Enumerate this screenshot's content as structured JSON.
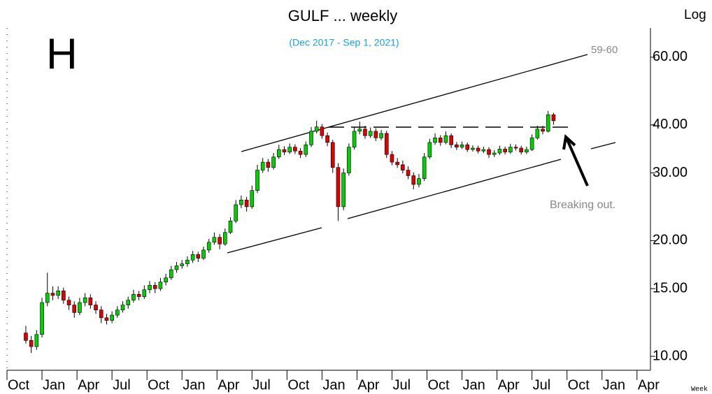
{
  "chart_data": {
    "type": "candlestick",
    "title": "GULF ... weekly",
    "subtitle": "(Dec 2017 - Sep 1, 2021)",
    "annotations": [
      "H",
      "59-60",
      "Breaking out.",
      "Log",
      "Week"
    ],
    "log_scale": true,
    "up_color": "#00d000",
    "down_color": "#e00000",
    "xlim": [
      0,
      239
    ],
    "xticks": [
      {
        "value": 0,
        "label": "Oct"
      },
      {
        "value": 13,
        "label": "Jan"
      },
      {
        "value": 26,
        "label": "Apr"
      },
      {
        "value": 39,
        "label": "Jul"
      },
      {
        "value": 52,
        "label": "Oct"
      },
      {
        "value": 65,
        "label": "Jan"
      },
      {
        "value": 78,
        "label": "Apr"
      },
      {
        "value": 91,
        "label": "Jul"
      },
      {
        "value": 104,
        "label": "Oct"
      },
      {
        "value": 117,
        "label": "Jan"
      },
      {
        "value": 130,
        "label": "Apr"
      },
      {
        "value": 143,
        "label": "Jul"
      },
      {
        "value": 156,
        "label": "Oct"
      },
      {
        "value": 169,
        "label": "Jan"
      },
      {
        "value": 182,
        "label": "Apr"
      },
      {
        "value": 195,
        "label": "Jul"
      },
      {
        "value": 208,
        "label": "Oct"
      },
      {
        "value": 221,
        "label": "Jan"
      },
      {
        "value": 234,
        "label": "Apr"
      }
    ],
    "ylim": [
      9.2,
      70
    ],
    "yticks": [
      {
        "value": 10,
        "label": "10.00"
      },
      {
        "value": 15,
        "label": "15.00"
      },
      {
        "value": 20,
        "label": "20.00"
      },
      {
        "value": 30,
        "label": "30.00"
      },
      {
        "value": 40,
        "label": "40.00"
      },
      {
        "value": 60,
        "label": "60.00"
      }
    ],
    "x": [
      7,
      9,
      11,
      13,
      15,
      17,
      19,
      21,
      23,
      25,
      27,
      29,
      31,
      33,
      35,
      37,
      39,
      41,
      43,
      45,
      47,
      49,
      51,
      53,
      55,
      57,
      59,
      61,
      63,
      65,
      67,
      69,
      71,
      73,
      75,
      77,
      79,
      81,
      83,
      85,
      87,
      89,
      91,
      93,
      95,
      97,
      99,
      101,
      103,
      105,
      107,
      109,
      111,
      113,
      115,
      117,
      119,
      121,
      123,
      125,
      127,
      129,
      131,
      133,
      135,
      137,
      139,
      141,
      143,
      145,
      147,
      149,
      151,
      153,
      155,
      157,
      159,
      161,
      163,
      165,
      167,
      169,
      171,
      173,
      175,
      177,
      179,
      181,
      183,
      185,
      187,
      189,
      191,
      193,
      195,
      197,
      199,
      201,
      203
    ],
    "open": [
      11.5,
      11.0,
      10.6,
      11.4,
      13.8,
      14.6,
      14.4,
      14.8,
      14.0,
      13.6,
      13.0,
      13.8,
      14.2,
      13.6,
      13.2,
      12.6,
      12.4,
      12.8,
      13.2,
      13.6,
      14.0,
      14.5,
      14.3,
      14.9,
      15.3,
      15.0,
      15.6,
      16.0,
      16.8,
      17.2,
      17.4,
      17.8,
      18.4,
      18.0,
      18.9,
      19.8,
      20.4,
      19.6,
      21.0,
      22.5,
      24.8,
      25.5,
      24.5,
      27.0,
      30.5,
      32.0,
      31.0,
      33.0,
      34.5,
      34.0,
      35.0,
      34.2,
      33.5,
      35.5,
      38.5,
      39.5,
      37.5,
      36.0,
      31.0,
      24.5,
      30.0,
      35.0,
      38.5,
      39.0,
      37.5,
      38.5,
      37.0,
      38.0,
      33.5,
      32.0,
      31.5,
      30.5,
      29.5,
      28.0,
      29.0,
      33.0,
      36.0,
      37.0,
      36.0,
      37.5,
      35.5,
      35.0,
      35.5,
      34.5,
      34.8,
      34.2,
      34.5,
      33.5,
      33.8,
      34.6,
      34.0,
      35.0,
      34.8,
      34.0,
      34.5,
      37.0,
      39.0,
      38.5,
      42.5
    ],
    "high": [
      12.0,
      11.3,
      11.7,
      14.2,
      16.5,
      15.2,
      15.2,
      15.1,
      14.3,
      13.9,
      14.2,
      14.6,
      14.5,
      13.9,
      13.5,
      12.9,
      13.1,
      13.5,
      13.9,
      14.3,
      14.9,
      14.8,
      15.3,
      15.7,
      15.6,
      16.0,
      16.4,
      17.2,
      17.6,
      17.8,
      18.2,
      18.8,
      18.7,
      19.3,
      20.2,
      21.0,
      20.8,
      21.5,
      23.0,
      25.5,
      26.2,
      26.0,
      27.8,
      31.5,
      32.8,
      32.6,
      33.8,
      35.5,
      35.2,
      35.8,
      35.6,
      34.8,
      36.2,
      39.5,
      41.0,
      40.2,
      38.2,
      36.6,
      31.8,
      30.8,
      35.8,
      39.5,
      40.8,
      39.8,
      39.4,
      39.2,
      38.8,
      38.6,
      34.2,
      32.8,
      32.3,
      31.2,
      30.1,
      29.8,
      33.8,
      36.8,
      38.0,
      37.6,
      38.5,
      38.0,
      36.1,
      36.2,
      36.0,
      35.4,
      35.3,
      35.1,
      35.0,
      34.4,
      35.3,
      35.1,
      35.7,
      35.6,
      35.3,
      35.1,
      37.8,
      39.8,
      39.8,
      43.5,
      43.0
    ],
    "low": [
      10.8,
      10.2,
      10.4,
      11.2,
      13.5,
      14.0,
      14.1,
      13.7,
      13.2,
      12.6,
      12.8,
      13.5,
      13.3,
      12.9,
      12.2,
      12.1,
      12.2,
      12.6,
      13.0,
      13.3,
      13.8,
      14.0,
      14.1,
      14.6,
      14.6,
      14.8,
      15.3,
      15.8,
      16.5,
      16.9,
      17.1,
      17.5,
      17.6,
      17.8,
      18.6,
      19.5,
      19.0,
      19.4,
      20.8,
      22.2,
      24.3,
      23.8,
      24.2,
      26.6,
      30.0,
      30.2,
      30.6,
      32.6,
      33.4,
      33.6,
      33.6,
      32.8,
      33.0,
      35.0,
      38.0,
      36.8,
      35.2,
      30.0,
      22.5,
      24.0,
      29.5,
      34.5,
      37.8,
      36.8,
      37.0,
      36.3,
      36.5,
      32.8,
      31.4,
      30.9,
      29.9,
      28.9,
      27.2,
      27.5,
      28.6,
      32.6,
      35.5,
      35.3,
      35.6,
      34.8,
      34.4,
      34.6,
      34.0,
      34.1,
      33.7,
      33.8,
      32.8,
      33.0,
      33.4,
      33.5,
      33.6,
      34.3,
      33.5,
      33.6,
      34.2,
      36.6,
      37.8,
      38.2,
      40.0
    ],
    "close": [
      11.0,
      10.6,
      11.4,
      13.8,
      14.6,
      14.4,
      14.8,
      14.0,
      13.6,
      13.0,
      13.8,
      14.2,
      13.6,
      13.2,
      12.6,
      12.4,
      12.8,
      13.2,
      13.6,
      14.0,
      14.5,
      14.3,
      14.9,
      15.3,
      15.0,
      15.6,
      16.0,
      16.8,
      17.2,
      17.4,
      17.8,
      18.4,
      18.0,
      18.9,
      19.8,
      20.4,
      19.6,
      21.0,
      22.5,
      24.8,
      25.5,
      24.5,
      27.0,
      30.5,
      32.0,
      31.0,
      33.0,
      34.5,
      34.0,
      35.0,
      34.2,
      33.5,
      35.5,
      38.5,
      39.5,
      37.5,
      36.0,
      31.0,
      24.5,
      30.0,
      35.0,
      38.5,
      39.0,
      37.5,
      38.5,
      37.0,
      38.0,
      33.5,
      32.0,
      31.5,
      30.5,
      29.5,
      28.0,
      29.0,
      33.0,
      36.0,
      37.0,
      36.0,
      37.5,
      35.5,
      35.0,
      35.5,
      34.5,
      34.8,
      34.2,
      34.5,
      33.5,
      33.8,
      34.6,
      34.0,
      35.0,
      34.8,
      34.0,
      34.5,
      37.0,
      39.0,
      38.5,
      42.5,
      41.0
    ]
  }
}
